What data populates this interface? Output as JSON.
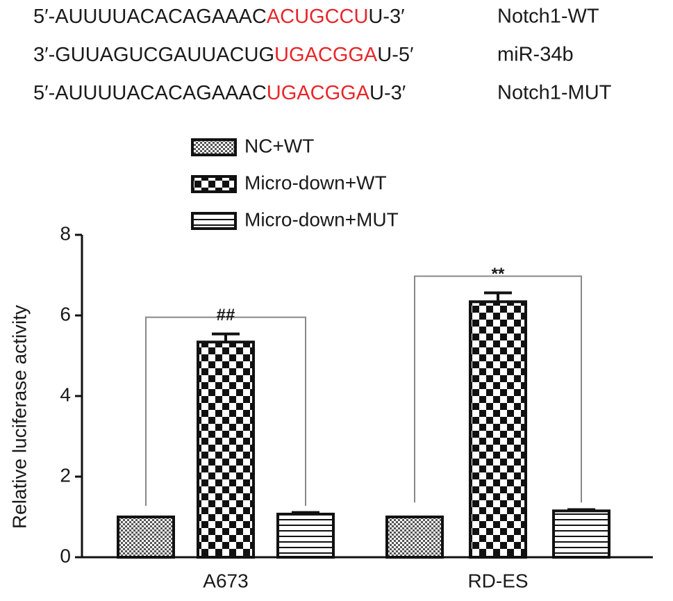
{
  "sequences": {
    "highlight_color": "#e8262a",
    "rows": [
      {
        "parts": [
          "5′-AUUUUACACAGAAAC",
          "ACUGCCU",
          "U-3′"
        ],
        "label": "Notch1-WT"
      },
      {
        "parts": [
          "3′-GUUAGUCGAUUACUG",
          "UGACGGA",
          "U-5′"
        ],
        "label": "miR-34b"
      },
      {
        "parts": [
          "5′-AUUUUACACAGAAAC",
          "UGACGGA",
          "U-3′"
        ],
        "label": "Notch1-MUT"
      }
    ]
  },
  "chart_data": {
    "type": "bar",
    "y_label": "Relative luciferase activity",
    "categories": [
      "A673",
      "RD-ES"
    ],
    "series": [
      {
        "name": "NC+WT",
        "pattern": "fine-checker",
        "values": [
          1,
          1
        ]
      },
      {
        "name": "Micro-down+WT",
        "pattern": "checker",
        "values": [
          5.34,
          6.34
        ],
        "errors": [
          0.2,
          0.22
        ]
      },
      {
        "name": "Micro-down+MUT",
        "pattern": "stripes",
        "values": [
          1.07,
          1.15
        ],
        "errors": [
          0.04,
          0.03
        ]
      }
    ],
    "annotations": [
      "##",
      "**"
    ],
    "ylim": [
      0,
      8
    ],
    "yticks": [
      0,
      2,
      4,
      6,
      8
    ]
  }
}
